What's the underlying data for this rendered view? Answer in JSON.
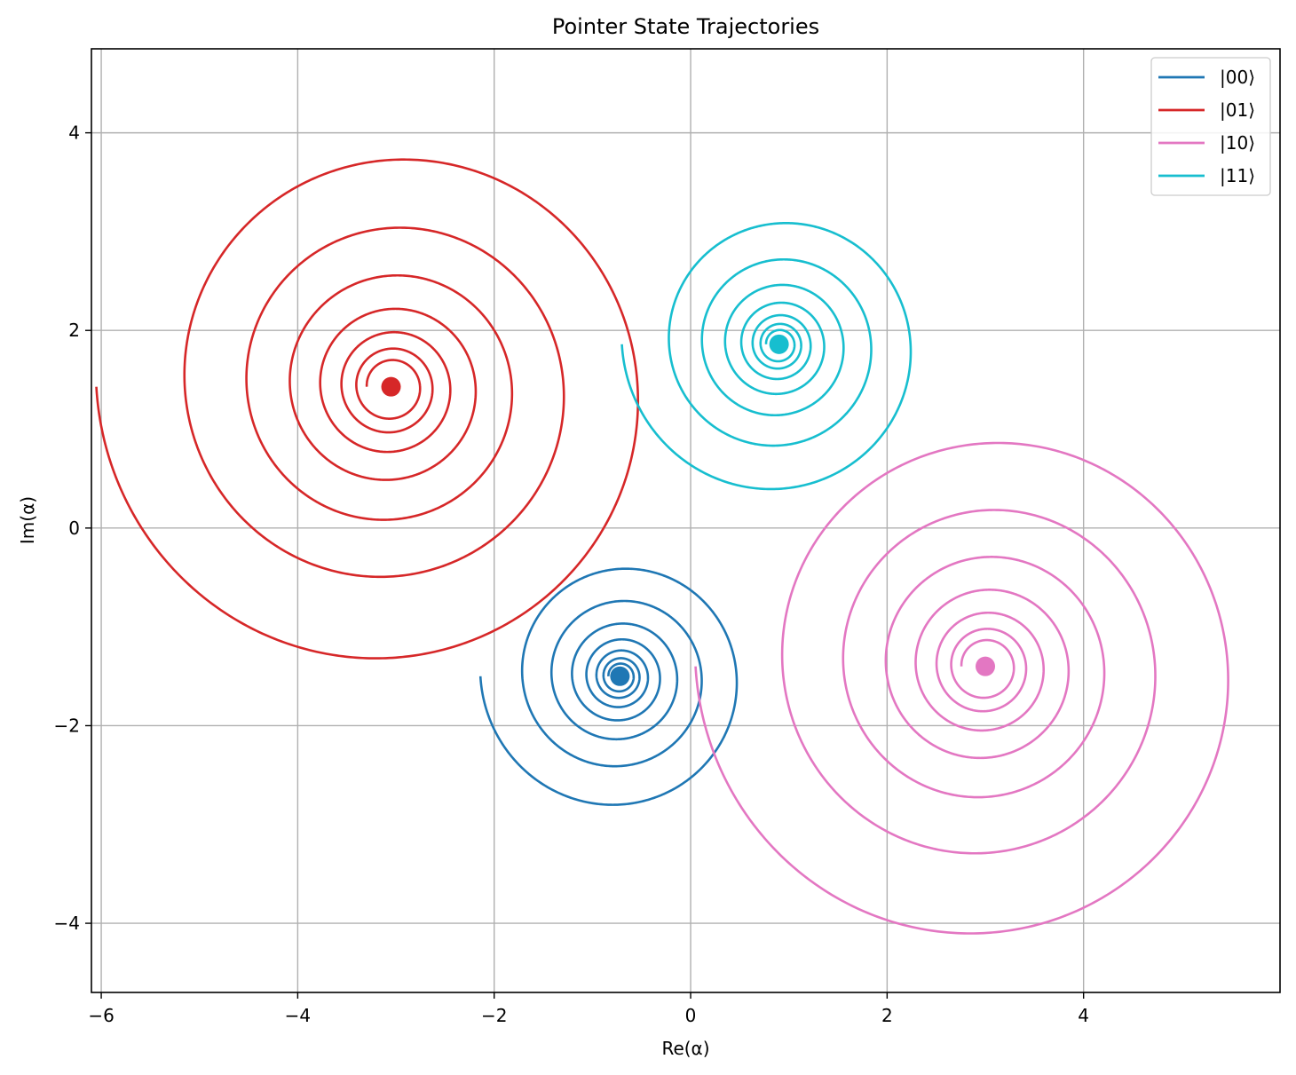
{
  "chart_data": {
    "type": "line",
    "title": "Pointer State Trajectories",
    "xlabel": "Re(α)",
    "ylabel": "Im(α)",
    "xlim": [
      -6.1,
      6.0
    ],
    "ylim": [
      -4.7,
      4.85
    ],
    "x_ticks": [
      -6,
      -4,
      -2,
      0,
      2,
      4
    ],
    "y_ticks": [
      -4,
      -2,
      0,
      2,
      4
    ],
    "x_tick_labels": [
      "−6",
      "−4",
      "−2",
      "0",
      "2",
      "4"
    ],
    "y_tick_labels": [
      "−4",
      "−2",
      "0",
      "2",
      "4"
    ],
    "grid": true,
    "legend_position": "top-right",
    "series": [
      {
        "name": "|00⟩",
        "color": "#1f77b4",
        "center": [
          -0.72,
          -1.5
        ],
        "start_radius": 1.42,
        "decay_per_turn": 0.7,
        "turns": 7
      },
      {
        "name": "|01⟩",
        "color": "#d62728",
        "center": [
          -3.05,
          1.43
        ],
        "start_radius": 3.0,
        "decay_per_turn": 0.7,
        "turns": 7
      },
      {
        "name": "|10⟩",
        "color": "#e377c2",
        "center": [
          3.0,
          -1.4
        ],
        "start_radius": 2.95,
        "decay_per_turn": 0.7,
        "turns": 7
      },
      {
        "name": "|11⟩",
        "color": "#17becf",
        "center": [
          0.9,
          1.86
        ],
        "start_radius": 1.6,
        "decay_per_turn": 0.7,
        "turns": 7
      }
    ]
  }
}
